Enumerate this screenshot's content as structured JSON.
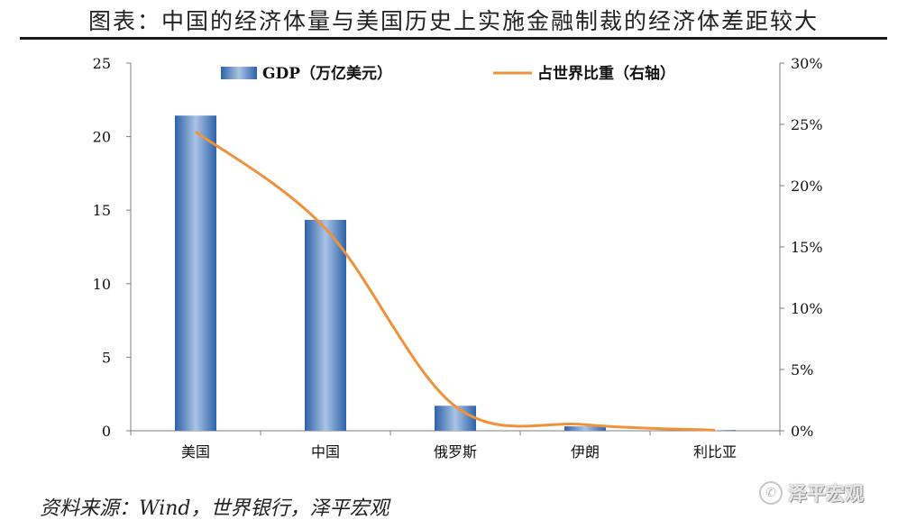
{
  "title": "图表：中国的经济体量与美国历史上实施金融制裁的经济体差距较大",
  "source": "资料来源：Wind，世界银行，泽平宏观",
  "watermark": {
    "icon": "wechat-icon",
    "text": "泽平宏观"
  },
  "chart_data": {
    "type": "bar",
    "categories": [
      "美国",
      "中国",
      "俄罗斯",
      "伊朗",
      "利比亚"
    ],
    "series": [
      {
        "name": "GDP（万亿美元）",
        "type": "bar",
        "axis": "left",
        "color": "#4a7fbf",
        "values": [
          21.43,
          14.34,
          1.7,
          0.3,
          0.05
        ]
      },
      {
        "name": "占世界比重（右轴）",
        "type": "line",
        "axis": "right",
        "color": "#f0913c",
        "values": [
          24.4,
          16.5,
          2.0,
          0.5,
          0.05
        ]
      }
    ],
    "yaxis_left": {
      "ylim": [
        0,
        25
      ],
      "ticks": [
        0,
        5,
        10,
        15,
        20,
        25
      ]
    },
    "yaxis_right": {
      "ylim": [
        0,
        30
      ],
      "ticks": [
        "0%",
        "5%",
        "10%",
        "15%",
        "20%",
        "25%",
        "30%"
      ]
    },
    "grid": false,
    "legend": "top-center"
  }
}
